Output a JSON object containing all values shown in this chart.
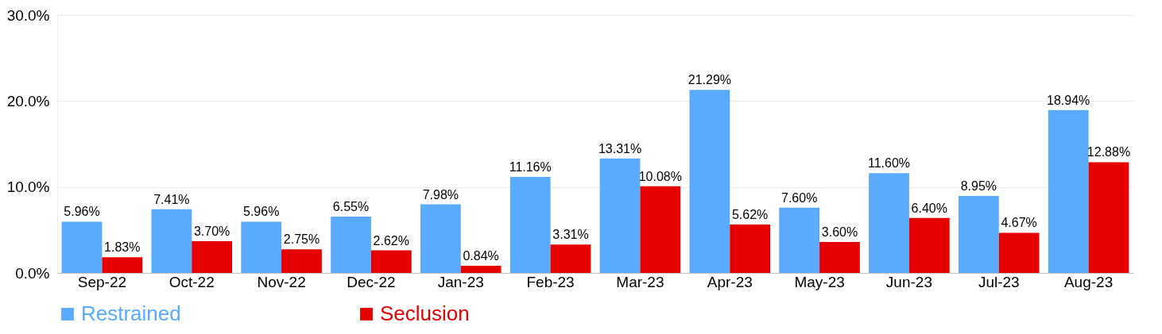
{
  "chart_data": {
    "type": "bar",
    "categories": [
      "Sep-22",
      "Oct-22",
      "Nov-22",
      "Dec-22",
      "Jan-23",
      "Feb-23",
      "Mar-23",
      "Apr-23",
      "May-23",
      "Jun-23",
      "Jul-23",
      "Aug-23"
    ],
    "series": [
      {
        "name": "Restrained",
        "color": "#5aabff",
        "values": [
          5.96,
          7.41,
          5.96,
          6.55,
          7.98,
          11.16,
          13.31,
          21.29,
          7.6,
          11.6,
          8.95,
          18.94
        ],
        "value_labels": [
          "5.96%",
          "7.41%",
          "5.96%",
          "6.55%",
          "7.98%",
          "11.16%",
          "13.31%",
          "21.29%",
          "7.60%",
          "11.60%",
          "8.95%",
          "18.94%"
        ]
      },
      {
        "name": "Seclusion",
        "color": "#e60000",
        "values": [
          1.83,
          3.7,
          2.75,
          2.62,
          0.84,
          3.31,
          10.08,
          5.62,
          3.6,
          6.4,
          4.67,
          12.88
        ],
        "value_labels": [
          "1.83%",
          "3.70%",
          "2.75%",
          "2.62%",
          "0.84%",
          "3.31%",
          "10.08%",
          "5.62%",
          "3.60%",
          "6.40%",
          "4.67%",
          "12.88%"
        ]
      }
    ],
    "ylim": [
      0,
      30
    ],
    "yticks": [
      {
        "value": 0,
        "label": "0.0%"
      },
      {
        "value": 10,
        "label": "10.0%"
      },
      {
        "value": 20,
        "label": "20.0%"
      },
      {
        "value": 30,
        "label": "30.0%"
      }
    ],
    "grid": "y",
    "legend": "bottom"
  }
}
